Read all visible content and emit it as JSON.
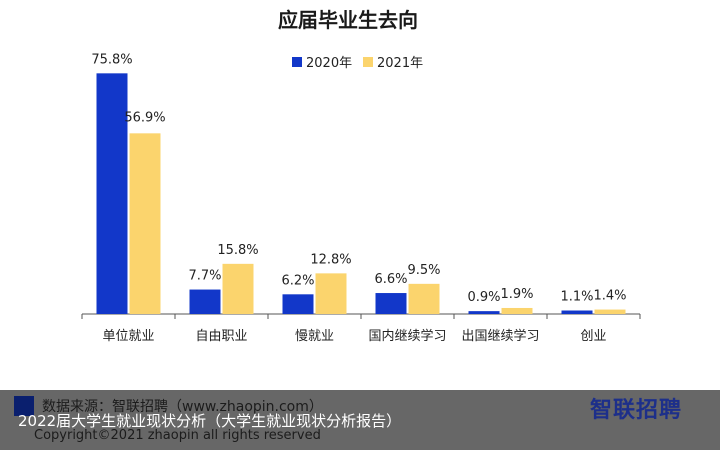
{
  "colors": {
    "series_2020": "#1237c9",
    "series_2021": "#fbd46d",
    "axis": "#555555"
  },
  "chart_data": {
    "type": "bar",
    "title": "应届毕业生去向",
    "categories": [
      "单位就业",
      "自由职业",
      "慢就业",
      "国内继续学习",
      "出国继续学习",
      "创业"
    ],
    "series": [
      {
        "name": "2020年",
        "values": [
          75.8,
          7.7,
          6.2,
          6.6,
          0.9,
          1.1
        ],
        "labels": [
          "75.8%",
          "7.7%",
          "6.2%",
          "6.6%",
          "0.9%",
          "1.1%"
        ]
      },
      {
        "name": "2021年",
        "values": [
          56.9,
          15.8,
          12.8,
          9.5,
          1.9,
          1.4
        ],
        "labels": [
          "56.9%",
          "15.8%",
          "12.8%",
          "9.5%",
          "1.9%",
          "1.4%"
        ]
      }
    ],
    "ylim": [
      0,
      80
    ],
    "legend_position": "top-center",
    "grid": false
  },
  "footer": {
    "source": "数据来源：智联招聘（www.zhaopin.com）",
    "caption": "2022届大学生就业现状分析（大学生就业现状分析报告）",
    "copyright": "Copyright©2021 zhaopin all rights reserved",
    "logo": "智联招聘"
  }
}
